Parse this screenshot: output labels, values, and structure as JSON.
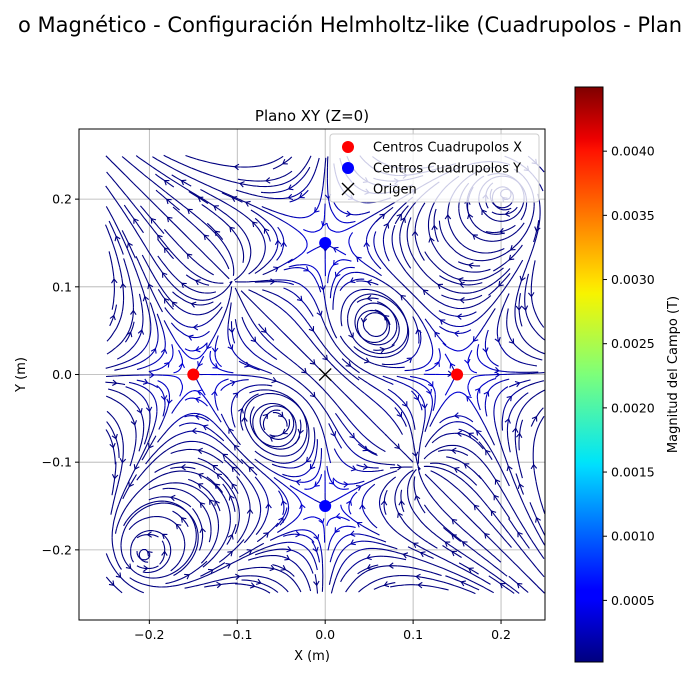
{
  "figure": {
    "suptitle": "o Magnético - Configuración Helmholtz-like (Cuadrupolos - Plan"
  },
  "chart_data": {
    "type": "streamplot",
    "title": "Plano XY (Z=0)",
    "xlabel": "X (m)",
    "ylabel": "Y (m)",
    "xlim": [
      -0.28,
      0.25
    ],
    "ylim": [
      -0.28,
      0.28
    ],
    "xticks": [
      -0.2,
      -0.1,
      0.0,
      0.1,
      0.2
    ],
    "yticks": [
      -0.2,
      -0.1,
      0.0,
      0.1,
      0.2
    ],
    "xtick_labels": [
      "−0.2",
      "−0.1",
      "0.0",
      "0.1",
      "0.2"
    ],
    "ytick_labels": [
      "−0.2",
      "−0.1",
      "0.0",
      "0.1",
      "0.2"
    ],
    "grid": true,
    "legend_position": "top-right",
    "stream_region": {
      "x": [
        -0.25,
        0.25
      ],
      "y": [
        -0.25,
        0.25
      ]
    },
    "series": [
      {
        "name": "Centros Cuadrupolos X",
        "marker": "circle",
        "color": "#ff0000",
        "points": [
          [
            -0.15,
            0.0
          ],
          [
            0.15,
            0.0
          ]
        ]
      },
      {
        "name": "Centros Cuadrupolos Y",
        "marker": "circle",
        "color": "#0000ff",
        "points": [
          [
            0.0,
            0.15
          ],
          [
            0.0,
            -0.15
          ]
        ]
      },
      {
        "name": "Origen",
        "marker": "x",
        "color": "#000000",
        "points": [
          [
            0.0,
            0.0
          ]
        ]
      }
    ],
    "colorbar": {
      "label": "Magnitud del Campo (T)",
      "colormap": "jet",
      "range": [
        2e-05,
        0.0045
      ],
      "ticks": [
        0.0005,
        0.001,
        0.0015,
        0.002,
        0.0025,
        0.003,
        0.0035,
        0.004
      ],
      "tick_labels": [
        "0.0005",
        "0.0010",
        "0.0015",
        "0.0020",
        "0.0025",
        "0.0030",
        "0.0035",
        "0.0040"
      ]
    }
  }
}
